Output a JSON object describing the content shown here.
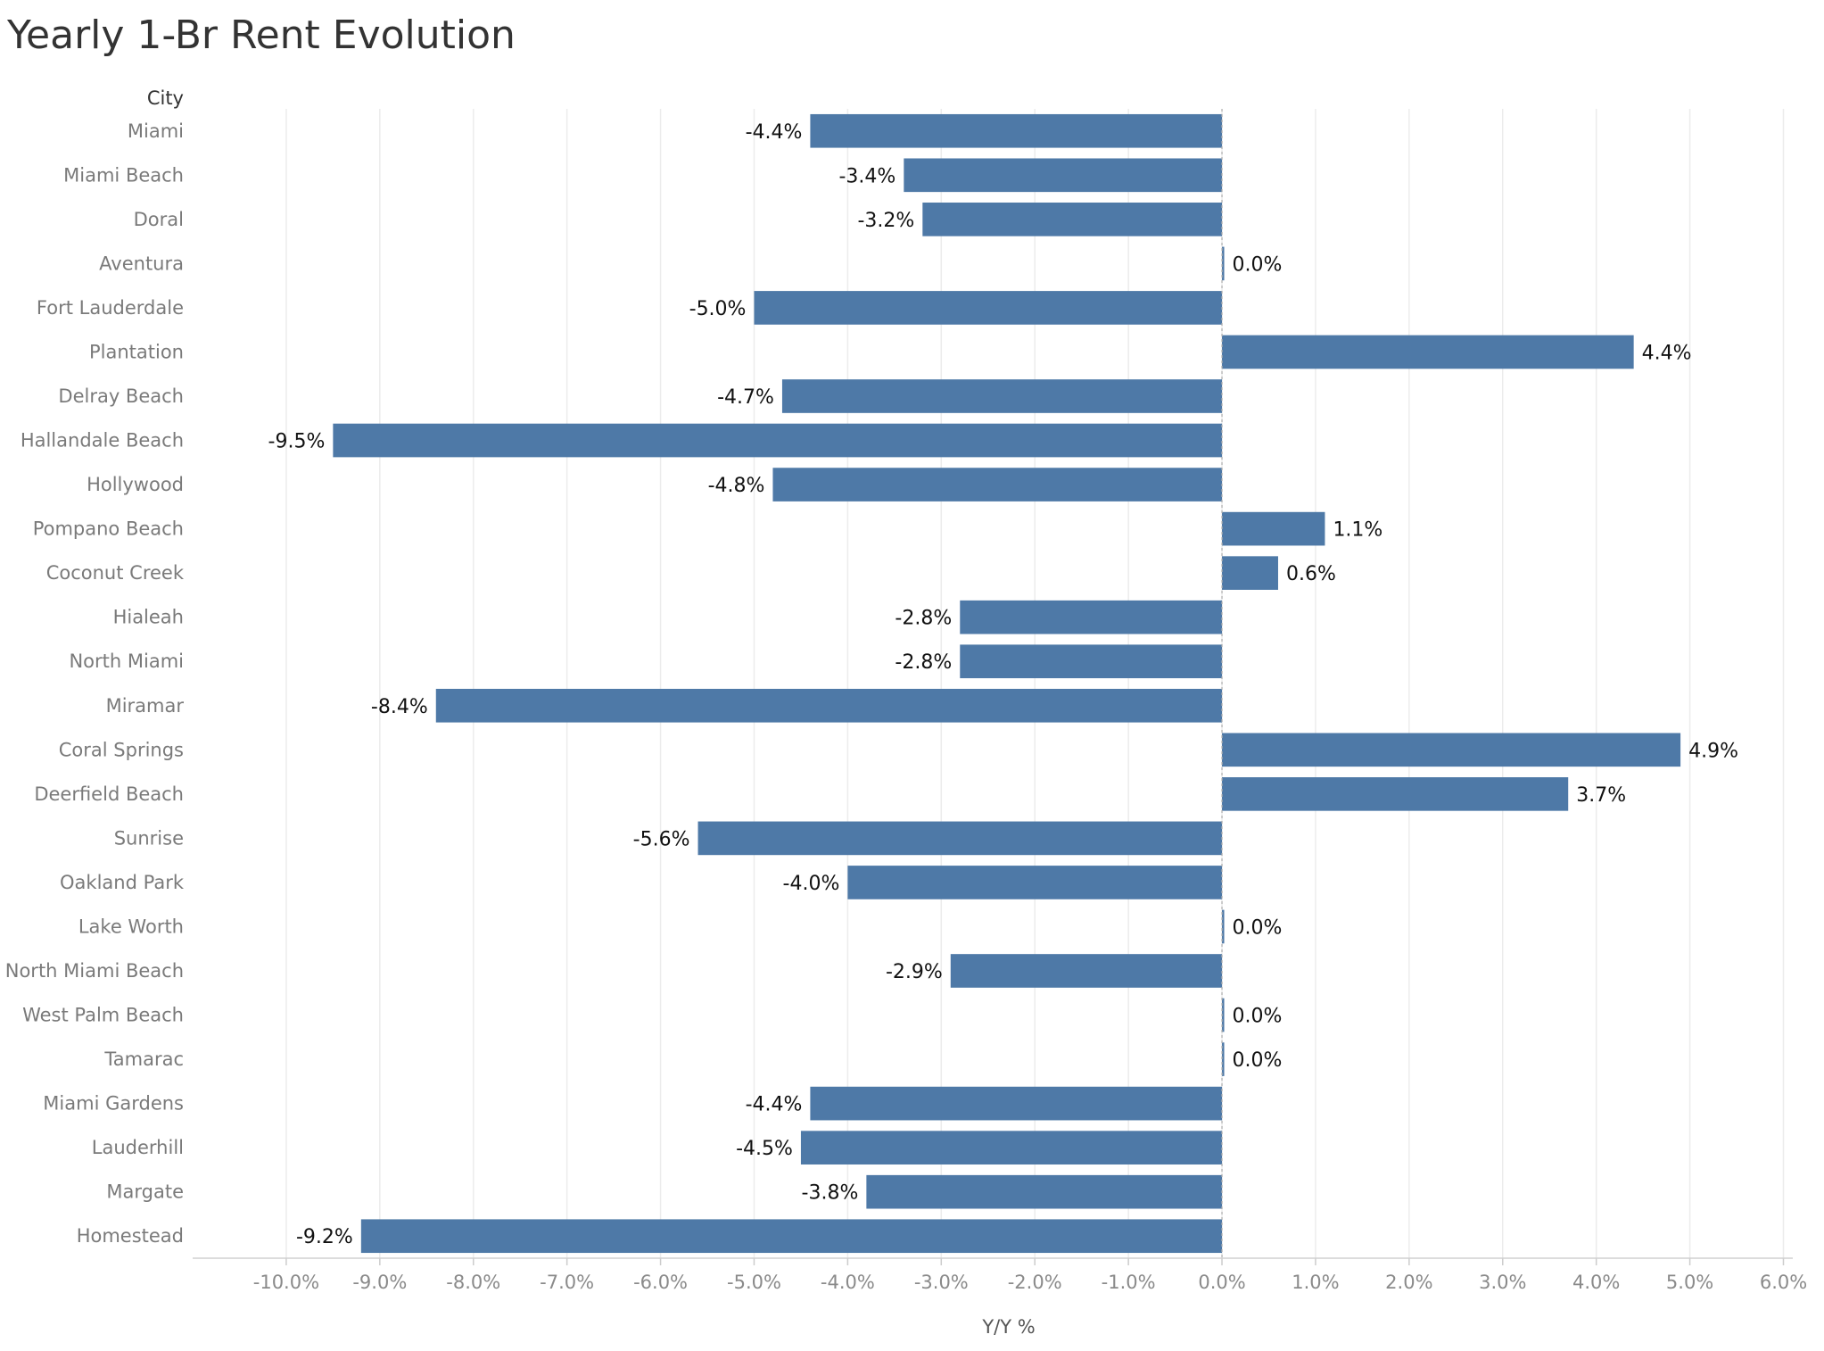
{
  "chart_data": {
    "type": "bar",
    "orientation": "horizontal",
    "title": "Yearly 1-Br Rent Evolution",
    "row_header": "City",
    "xlabel": "Y/Y %",
    "ylabel": "",
    "xlim": [
      -11,
      6.1
    ],
    "x_ticks": [
      -10,
      -9,
      -8,
      -7,
      -6,
      -5,
      -4,
      -3,
      -2,
      -1,
      0,
      1,
      2,
      3,
      4,
      5,
      6
    ],
    "x_tick_labels": [
      "-10.0%",
      "-9.0%",
      "-8.0%",
      "-7.0%",
      "-6.0%",
      "-5.0%",
      "-4.0%",
      "-3.0%",
      "-2.0%",
      "-1.0%",
      "0.0%",
      "1.0%",
      "2.0%",
      "3.0%",
      "4.0%",
      "5.0%",
      "6.0%"
    ],
    "grid": "vertical",
    "bar_color": "#4e79a7",
    "categories": [
      "Miami",
      "Miami Beach",
      "Doral",
      "Aventura",
      "Fort Lauderdale",
      "Plantation",
      "Delray Beach",
      "Hallandale Beach",
      "Hollywood",
      "Pompano Beach",
      "Coconut Creek",
      "Hialeah",
      "North Miami",
      "Miramar",
      "Coral Springs",
      "Deerfield Beach",
      "Sunrise",
      "Oakland Park",
      "Lake Worth",
      "North Miami Beach",
      "West Palm Beach",
      "Tamarac",
      "Miami Gardens",
      "Lauderhill",
      "Margate",
      "Homestead"
    ],
    "values": [
      -4.4,
      -3.4,
      -3.2,
      0.0,
      -5.0,
      4.4,
      -4.7,
      -9.5,
      -4.8,
      1.1,
      0.6,
      -2.8,
      -2.8,
      -8.4,
      4.9,
      3.7,
      -5.6,
      -4.0,
      0.0,
      -2.9,
      0.0,
      0.0,
      -4.4,
      -4.5,
      -3.8,
      -9.2
    ],
    "value_labels": [
      "-4.4%",
      "-3.4%",
      "-3.2%",
      "0.0%",
      "-5.0%",
      "4.4%",
      "-4.7%",
      "-9.5%",
      "-4.8%",
      "1.1%",
      "0.6%",
      "-2.8%",
      "-2.8%",
      "-8.4%",
      "4.9%",
      "3.7%",
      "-5.6%",
      "-4.0%",
      "0.0%",
      "-2.9%",
      "0.0%",
      "0.0%",
      "-4.4%",
      "-4.5%",
      "-3.8%",
      "-9.2%"
    ]
  }
}
